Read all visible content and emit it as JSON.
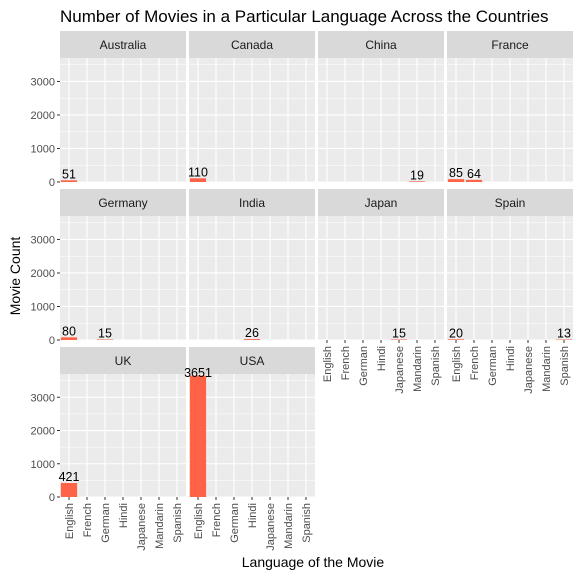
{
  "colors": {
    "panel_background": "#ebebeb",
    "grid": "#ffffff",
    "strip_background": "#d9d9d9",
    "bar": "#ff6347"
  },
  "chart_data": {
    "type": "bar",
    "title": "Number of Movies in a Particular Language Across the Countries",
    "xlabel": "Language of the Movie",
    "ylabel": "Movie Count",
    "ylim": [
      0,
      3700
    ],
    "y_ticks": [
      0,
      1000,
      2000,
      3000
    ],
    "categories": [
      "English",
      "French",
      "German",
      "Hindi",
      "Japanese",
      "Mandarin",
      "Spanish"
    ],
    "facets": [
      {
        "name": "Australia",
        "values": [
          51,
          0,
          0,
          0,
          0,
          0,
          0
        ],
        "labels": [
          "51",
          "",
          "",
          "",
          "",
          "",
          ""
        ]
      },
      {
        "name": "Canada",
        "values": [
          110,
          0,
          0,
          0,
          0,
          0,
          0
        ],
        "labels": [
          "110",
          "",
          "",
          "",
          "",
          "",
          ""
        ]
      },
      {
        "name": "China",
        "values": [
          0,
          0,
          0,
          0,
          0,
          19,
          0
        ],
        "labels": [
          "",
          "",
          "",
          "",
          "",
          "19",
          ""
        ]
      },
      {
        "name": "France",
        "values": [
          85,
          64,
          0,
          0,
          0,
          0,
          0
        ],
        "labels": [
          "85",
          "64",
          "",
          "",
          "",
          "",
          ""
        ]
      },
      {
        "name": "Germany",
        "values": [
          80,
          0,
          15,
          0,
          0,
          0,
          0
        ],
        "labels": [
          "80",
          "",
          "15",
          "",
          "",
          "",
          ""
        ]
      },
      {
        "name": "India",
        "values": [
          0,
          0,
          0,
          26,
          0,
          0,
          0
        ],
        "labels": [
          "",
          "",
          "",
          "26",
          "",
          "",
          ""
        ]
      },
      {
        "name": "Japan",
        "values": [
          0,
          0,
          0,
          0,
          15,
          0,
          0
        ],
        "labels": [
          "",
          "",
          "",
          "",
          "15",
          "",
          ""
        ]
      },
      {
        "name": "Spain",
        "values": [
          20,
          0,
          0,
          0,
          0,
          0,
          13
        ],
        "labels": [
          "20",
          "",
          "",
          "",
          "",
          "",
          "13"
        ]
      },
      {
        "name": "UK",
        "values": [
          421,
          0,
          0,
          0,
          0,
          0,
          0
        ],
        "labels": [
          "421",
          "",
          "",
          "",
          "",
          "",
          ""
        ]
      },
      {
        "name": "USA",
        "values": [
          3651,
          0,
          0,
          0,
          0,
          0,
          0
        ],
        "labels": [
          "3651",
          "",
          "",
          "",
          "",
          "",
          ""
        ]
      }
    ],
    "grid": true,
    "legend": "none"
  }
}
